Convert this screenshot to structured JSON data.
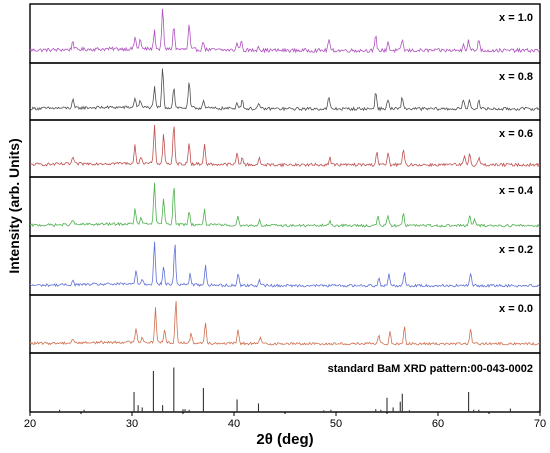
{
  "chart_data": {
    "type": "line",
    "xlabel": "2θ (deg)",
    "ylabel": "Intensity (arb. Units)",
    "xlim": [
      20,
      70
    ],
    "x_ticks": [
      "20",
      "30",
      "40",
      "50",
      "60",
      "70"
    ],
    "grid": false,
    "series": [
      {
        "name": "x = 1.0",
        "color": "#b052c0",
        "baseline": 0.18,
        "noise": 0.035,
        "peaks": [
          [
            24.2,
            0.22
          ],
          [
            30.3,
            0.3
          ],
          [
            30.8,
            0.25
          ],
          [
            32.2,
            0.45
          ],
          [
            33.0,
            1.0
          ],
          [
            34.1,
            0.58
          ],
          [
            35.6,
            0.62
          ],
          [
            37.0,
            0.2
          ],
          [
            40.3,
            0.18
          ],
          [
            40.7,
            0.25
          ],
          [
            42.4,
            0.12
          ],
          [
            49.3,
            0.28
          ],
          [
            53.9,
            0.35
          ],
          [
            55.1,
            0.22
          ],
          [
            56.5,
            0.28
          ],
          [
            62.5,
            0.2
          ],
          [
            63.0,
            0.25
          ],
          [
            64.0,
            0.3
          ]
        ]
      },
      {
        "name": "x = 0.8",
        "color": "#505050",
        "baseline": 0.16,
        "noise": 0.03,
        "peaks": [
          [
            24.2,
            0.2
          ],
          [
            30.3,
            0.25
          ],
          [
            30.8,
            0.2
          ],
          [
            32.2,
            0.5
          ],
          [
            33.0,
            1.0
          ],
          [
            34.1,
            0.52
          ],
          [
            35.6,
            0.65
          ],
          [
            37.0,
            0.22
          ],
          [
            40.3,
            0.18
          ],
          [
            40.8,
            0.25
          ],
          [
            42.4,
            0.12
          ],
          [
            49.3,
            0.3
          ],
          [
            53.9,
            0.45
          ],
          [
            55.1,
            0.25
          ],
          [
            56.5,
            0.3
          ],
          [
            62.5,
            0.25
          ],
          [
            63.1,
            0.22
          ],
          [
            64.0,
            0.25
          ]
        ]
      },
      {
        "name": "x = 0.6",
        "color": "#c05050",
        "baseline": 0.18,
        "noise": 0.03,
        "peaks": [
          [
            24.2,
            0.18
          ],
          [
            30.3,
            0.45
          ],
          [
            30.9,
            0.2
          ],
          [
            32.2,
            0.95
          ],
          [
            33.1,
            0.75
          ],
          [
            34.1,
            1.0
          ],
          [
            35.6,
            0.55
          ],
          [
            37.1,
            0.5
          ],
          [
            40.3,
            0.3
          ],
          [
            40.8,
            0.2
          ],
          [
            42.5,
            0.15
          ],
          [
            49.4,
            0.2
          ],
          [
            54.0,
            0.35
          ],
          [
            55.1,
            0.3
          ],
          [
            56.6,
            0.4
          ],
          [
            62.6,
            0.2
          ],
          [
            63.1,
            0.3
          ],
          [
            64.0,
            0.2
          ]
        ]
      },
      {
        "name": "x = 0.4",
        "color": "#50b050",
        "baseline": 0.14,
        "noise": 0.025,
        "peaks": [
          [
            24.2,
            0.12
          ],
          [
            30.3,
            0.35
          ],
          [
            30.9,
            0.15
          ],
          [
            32.2,
            1.0
          ],
          [
            33.1,
            0.6
          ],
          [
            34.1,
            0.95
          ],
          [
            35.6,
            0.32
          ],
          [
            37.1,
            0.35
          ],
          [
            40.4,
            0.22
          ],
          [
            42.5,
            0.12
          ],
          [
            49.4,
            0.12
          ],
          [
            54.1,
            0.22
          ],
          [
            55.1,
            0.25
          ],
          [
            56.6,
            0.32
          ],
          [
            63.1,
            0.25
          ],
          [
            63.6,
            0.15
          ]
        ]
      },
      {
        "name": "x = 0.2",
        "color": "#6070d8",
        "baseline": 0.12,
        "noise": 0.025,
        "peaks": [
          [
            24.2,
            0.1
          ],
          [
            30.4,
            0.32
          ],
          [
            31.0,
            0.12
          ],
          [
            32.2,
            1.0
          ],
          [
            33.1,
            0.4
          ],
          [
            34.2,
            0.95
          ],
          [
            35.7,
            0.25
          ],
          [
            37.2,
            0.45
          ],
          [
            40.4,
            0.28
          ],
          [
            42.5,
            0.12
          ],
          [
            54.2,
            0.2
          ],
          [
            55.2,
            0.28
          ],
          [
            56.7,
            0.32
          ],
          [
            63.2,
            0.3
          ]
        ]
      },
      {
        "name": "x = 0.0",
        "color": "#d07050",
        "baseline": 0.12,
        "noise": 0.025,
        "peaks": [
          [
            24.2,
            0.1
          ],
          [
            30.4,
            0.35
          ],
          [
            31.0,
            0.12
          ],
          [
            32.3,
            0.8
          ],
          [
            33.2,
            0.3
          ],
          [
            34.3,
            1.0
          ],
          [
            35.8,
            0.22
          ],
          [
            37.2,
            0.5
          ],
          [
            40.4,
            0.3
          ],
          [
            42.6,
            0.15
          ],
          [
            54.2,
            0.2
          ],
          [
            55.3,
            0.3
          ],
          [
            56.7,
            0.4
          ],
          [
            63.2,
            0.35
          ]
        ]
      }
    ],
    "reference": {
      "label": "standard BaM XRD pattern:00-043-0002",
      "color": "#333333",
      "sticks": [
        [
          22.9,
          0.04
        ],
        [
          25.3,
          0.04
        ],
        [
          30.2,
          0.35
        ],
        [
          30.6,
          0.12
        ],
        [
          31.0,
          0.08
        ],
        [
          32.1,
          0.72
        ],
        [
          33.0,
          0.12
        ],
        [
          34.1,
          0.78
        ],
        [
          35.0,
          0.05
        ],
        [
          35.2,
          0.05
        ],
        [
          35.6,
          0.04
        ],
        [
          37.0,
          0.42
        ],
        [
          40.3,
          0.22
        ],
        [
          42.4,
          0.15
        ],
        [
          48.8,
          0.03
        ],
        [
          49.5,
          0.04
        ],
        [
          53.9,
          0.05
        ],
        [
          54.4,
          0.04
        ],
        [
          55.0,
          0.25
        ],
        [
          55.6,
          0.08
        ],
        [
          56.3,
          0.18
        ],
        [
          56.5,
          0.32
        ],
        [
          57.2,
          0.03
        ],
        [
          63.0,
          0.35
        ],
        [
          63.5,
          0.04
        ],
        [
          64.0,
          0.04
        ],
        [
          67.1,
          0.06
        ],
        [
          69.8,
          0.02
        ]
      ]
    }
  }
}
